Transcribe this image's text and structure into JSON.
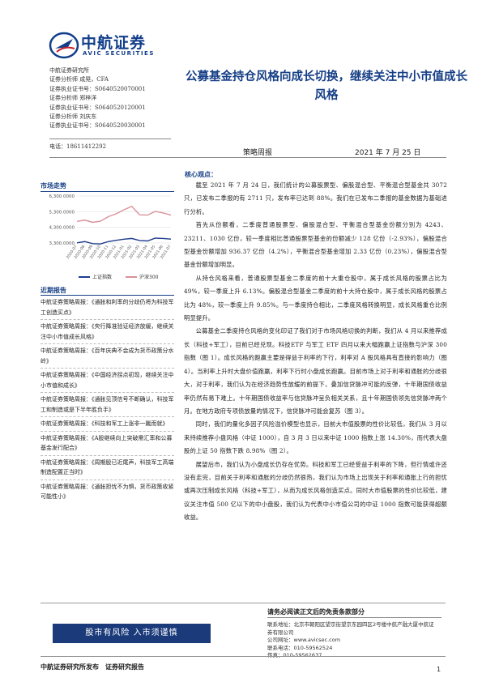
{
  "header": {
    "logo_cn": "中航证券",
    "logo_en": "AVIC SECURITIES",
    "institute": "中航证券研究所",
    "analysts": [
      "证券分析师 成晃，CFA",
      "证券执业证书号：S0640520070001",
      "证券分析师 郑梓洋",
      "证券执业证书号：S0640520120001",
      "证券分析师 刘庆东",
      "证券执业证书号：S0640520030001"
    ],
    "phone": "电话：18611412292",
    "title": "公募基金持仓风格向成长切换，继续关注中小市值成长风格",
    "report_type": "策略周报",
    "date": "2021 年 7 月 25 日"
  },
  "sidebar": {
    "market_title": "市场走势",
    "news_title": "近期报告",
    "news": [
      "中航证券策略周报：《通胀和利率的分歧仍将为科技军工创造买点》",
      "中航证券策略周报：《央行降准验证经济放缓，继续关注中小市值成长风格》",
      "中航证券策略周报：《百年庆典不会成为货币政策分水岭》",
      "中航证券策略周报：《中国经济拐点初现，继续关注中小市值和成长》",
      "中航证券策略周报：《通胀见顶信号不断确认，科技军工和制造或是下半年胜负手》",
      "中航证券策略周报：《科技和军工上涨非一蹴而就》",
      "中航证券策略周报：《A股继续向上突破需汇率和公募基金发行配合》",
      "中航证券策略周报：《周期股已近尾声，科技军工高端制造配置正当时》",
      "中航证券策略周报：《通胀担忧不为惧，货币政策收紧可能性小》"
    ]
  },
  "chart_data": {
    "type": "line",
    "title": "",
    "xlabel": "",
    "ylabel": "",
    "ylim": [
      3300,
      6300
    ],
    "yticks": [
      "6,300.0000",
      "5,300.0000",
      "4,300.0000",
      "3,300.0000"
    ],
    "x": [
      "2020-07",
      "2020-08",
      "2020-09",
      "2020-10",
      "2020-11",
      "2020-12",
      "2021-01",
      "2021-02",
      "2021-03",
      "2021-04",
      "2021-05",
      "2021-06",
      "2021-07"
    ],
    "series": [
      {
        "name": "上证指数",
        "color": "#1f3d8f",
        "values": [
          3310,
          3390,
          3260,
          3240,
          3390,
          3470,
          3540,
          3590,
          3460,
          3430,
          3610,
          3590,
          3550
        ]
      },
      {
        "name": "沪深300",
        "color": "#d9919a",
        "values": [
          4680,
          4760,
          4620,
          4690,
          4980,
          5160,
          5420,
          5640,
          5100,
          5080,
          5320,
          5220,
          5080
        ]
      }
    ]
  },
  "body": {
    "core_title": "核心观点：",
    "paragraphs": [
      "截至 2021 年 7 月 24 日，我们统计的公募股票型、偏股混合型、平衡混合型基金共 3072 只，已发布二季报的有 2711 只，发布率已达到 88%。我们在已发布二季报的基金数据为基础进行分析。",
      "首先从份额看，二季度普通股票型、偏股混合型、平衡混合型基金份额分别为 4243、23211、1030 亿份，较一季度相比普通股票型基金的份额减少 128 亿份（-2.93%），偏股混合型基金份额增加 936.37 亿份（4.2%），平衡混合型基金增加 2.33 亿份（0.23%），偏股混合型基金份额增加明显。",
      "从持仓风格来看，普通股票型基金二季度的前十大重仓股中，属于成长风格的股票占比为 49%，较一季度上升 6.13%。偏股混合型基金二季度的前十大持仓股中，属于成长风格的股票占比为 48%，较一季度上升 9.85%。与一季度持仓相比，二季度风格转换明显，成长风格重仓比例明显提升。",
      "公募基金二季度持仓风格的变化印证了我们对于市场风格切换的判断，我们从 4 月以来推荐成长（科技+军工），目前已经兑现。科技ETF 与军工 ETF 四月以来大幅跑赢上证指数与沪深 300 指数（图 1）。成长风格的跑赢主要是得益于利率的下行，利率对 A 股风格具有直接的影响力（图 4）。当利率上升时大盘价值跑赢，利率下行时小盘成长跑赢。目前市场上对于利率和通胀的分歧很大，对于利率，我们认为在经济趋势性放缓的前提下，叠加信贷脉冲可能的反弹，十年期国债收益率仍然有易下难上。十年期国债收益率与信贷脉冲呈负相关关系，且十年期国债领先信贷脉冲两个月。在地方政府专项债放量的情况下，信贷脉冲可能会复苏（图 3）。",
      "同时，我们的量化多因子风险溢价模型也显示，目前大市值股票的性价比较低，我们从 3 月以来持续推荐小盘风格（中证 1000），自 3 月 3 日以来中证 1000 指数上涨 14.30%，而代表大盘股的上证 50 指数下跌 8.98%（图 2）。",
      "展望后市，我们认为小盘成长仍存在优势。科技和军工已经受益于利率的下降，但行情或许还没有走完，目前关于利率和通胀的分歧仍然很热，我们认为市场上出现关于利率和通胀上行的担忧或再次压制成长风格（科技+军工），从而为成长风格创造买点。同时大市值股票的性价比较低，建议关注市值 500 亿以下的中小盘股，我们认为代表中小市值公司的中证 1000 指数可能获得超额收益。"
    ]
  },
  "footer": {
    "banner": "股市有风险 入市须谨慎",
    "disclaimer_title": "请务必阅读正文后的免责条款部分",
    "contact": [
      "联系地址：北京市朝阳区望京街望京东园四区2号楼中航产融大厦中航证券有限公司",
      "公司网址：www.avicsec.com",
      "联系电话：010-59562524",
      "传真：010-59562637"
    ],
    "publisher": "中航证券研究所发布　证券研究报告",
    "page": "1"
  }
}
